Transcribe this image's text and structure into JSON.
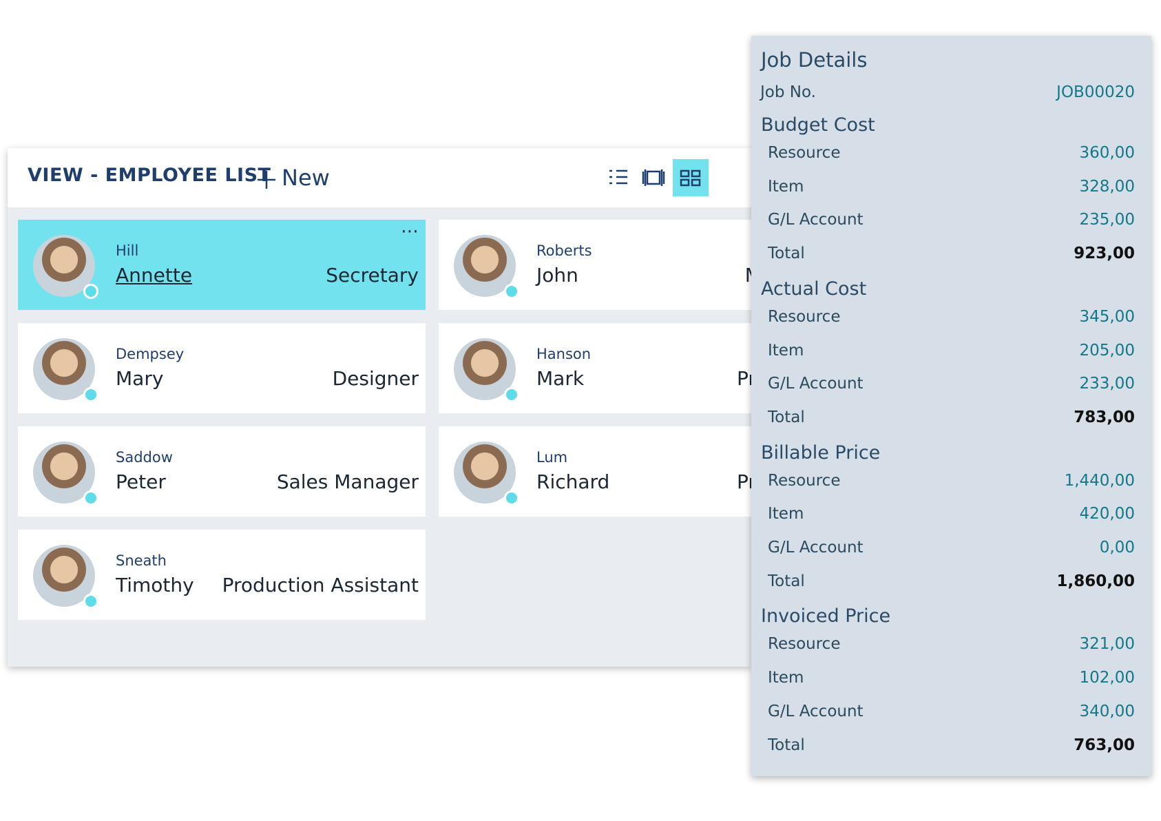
{
  "employee_list": {
    "title": "VIEW - EMPLOYEE LIST",
    "new_button": "New",
    "cards": [
      {
        "last_name": "Hill",
        "first_name": "Annette",
        "job_title": "Secretary"
      },
      {
        "last_name": "Roberts",
        "first_name": "John",
        "job_title": "Managing"
      },
      {
        "last_name": "Dempsey",
        "first_name": "Mary",
        "job_title": "Designer"
      },
      {
        "last_name": "Hanson",
        "first_name": "Mark",
        "job_title": "Production"
      },
      {
        "last_name": "Saddow",
        "first_name": "Peter",
        "job_title": "Sales Manager"
      },
      {
        "last_name": "Lum",
        "first_name": "Richard",
        "job_title": "Production"
      },
      {
        "last_name": "Sneath",
        "first_name": "Timothy",
        "job_title": "Production Assistant"
      }
    ]
  },
  "job_details": {
    "title": "Job Details",
    "job_no_label": "Job No.",
    "job_no": "JOB00020",
    "sections": [
      {
        "title": "Budget Cost",
        "rows": [
          {
            "label": "Resource",
            "value": "360,00"
          },
          {
            "label": "Item",
            "value": "328,00"
          },
          {
            "label": "G/L Account",
            "value": "235,00"
          },
          {
            "label": "Total",
            "value": "923,00"
          }
        ]
      },
      {
        "title": "Actual Cost",
        "rows": [
          {
            "label": "Resource",
            "value": "345,00"
          },
          {
            "label": "Item",
            "value": "205,00"
          },
          {
            "label": "G/L Account",
            "value": "233,00"
          },
          {
            "label": "Total",
            "value": "783,00"
          }
        ]
      },
      {
        "title": "Billable Price",
        "rows": [
          {
            "label": "Resource",
            "value": "1,440,00"
          },
          {
            "label": "Item",
            "value": "420,00"
          },
          {
            "label": "G/L Account",
            "value": "0,00"
          },
          {
            "label": "Total",
            "value": "1,860,00"
          }
        ]
      },
      {
        "title": "Invoiced Price",
        "rows": [
          {
            "label": "Resource",
            "value": "321,00"
          },
          {
            "label": "Item",
            "value": "102,00"
          },
          {
            "label": "G/L Account",
            "value": "340,00"
          },
          {
            "label": "Total",
            "value": "763,00"
          }
        ]
      }
    ]
  }
}
